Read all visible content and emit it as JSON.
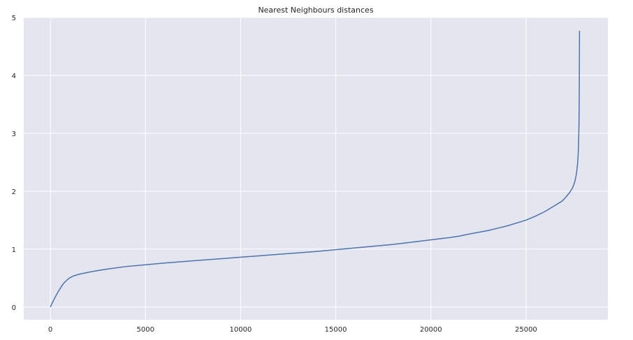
{
  "chart_data": {
    "type": "line",
    "title": "Nearest Neighbours distances",
    "xlabel": "",
    "ylabel": "",
    "xlim": [
      -1400,
      29300
    ],
    "ylim": [
      -0.22,
      5.0
    ],
    "xticks": [
      0,
      5000,
      10000,
      15000,
      20000,
      25000
    ],
    "yticks": [
      0,
      1,
      2,
      3,
      4,
      5
    ],
    "grid": true,
    "colors": {
      "background": "#e5e5ef",
      "grid": "#ffffff",
      "line": "#4c72b0"
    },
    "series": [
      {
        "name": "",
        "x": [
          0,
          100,
          250,
          400,
          550,
          700,
          850,
          1000,
          1200,
          1500,
          2000,
          2500,
          3000,
          4000,
          5000,
          6000,
          7000,
          8000,
          9000,
          10000,
          11000,
          12000,
          13000,
          14000,
          15000,
          16000,
          17000,
          18000,
          19000,
          20000,
          21000,
          21500,
          22000,
          22500,
          23000,
          23500,
          24000,
          24500,
          25000,
          25500,
          26000,
          26500,
          26900,
          27100,
          27300,
          27450,
          27550,
          27620,
          27680,
          27720,
          27750,
          27770,
          27785,
          27795,
          27800,
          27805,
          27808,
          27810
        ],
        "y": [
          0.0,
          0.07,
          0.17,
          0.26,
          0.34,
          0.41,
          0.46,
          0.5,
          0.535,
          0.565,
          0.6,
          0.63,
          0.655,
          0.7,
          0.73,
          0.76,
          0.785,
          0.81,
          0.835,
          0.86,
          0.885,
          0.91,
          0.935,
          0.96,
          0.99,
          1.02,
          1.05,
          1.08,
          1.12,
          1.16,
          1.2,
          1.225,
          1.26,
          1.29,
          1.32,
          1.36,
          1.4,
          1.45,
          1.5,
          1.57,
          1.65,
          1.75,
          1.83,
          1.9,
          1.98,
          2.06,
          2.15,
          2.25,
          2.38,
          2.52,
          2.7,
          2.95,
          3.2,
          3.55,
          3.9,
          4.25,
          4.55,
          4.77
        ]
      }
    ]
  }
}
